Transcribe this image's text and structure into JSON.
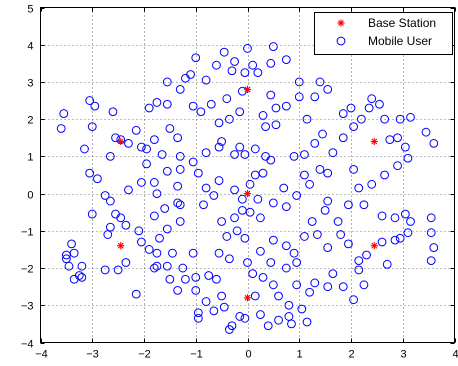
{
  "chart_data": {
    "type": "scatter",
    "title": "",
    "xlabel": "",
    "ylabel": "",
    "xlim": [
      -4,
      4
    ],
    "ylim": [
      -4,
      5
    ],
    "xticks": [
      -4,
      -3,
      -2,
      -1,
      0,
      1,
      2,
      3,
      4
    ],
    "yticks": [
      -4,
      -3,
      -2,
      -1,
      0,
      1,
      2,
      3,
      4,
      5
    ],
    "xtick_labels": [
      "−4",
      "−3",
      "−2",
      "−1",
      "0",
      "1",
      "2",
      "3",
      "4"
    ],
    "ytick_labels": [
      "−4",
      "−3",
      "−2",
      "−1",
      "0",
      "1",
      "2",
      "3",
      "4",
      "5"
    ],
    "grid": true,
    "legend_position": "top-right",
    "series": [
      {
        "name": "Base Station",
        "marker": "star",
        "color": "#ff0000",
        "points": [
          [
            0,
            0
          ],
          [
            0,
            2.8
          ],
          [
            0,
            -2.8
          ],
          [
            -2.45,
            1.4
          ],
          [
            2.45,
            1.4
          ],
          [
            -2.45,
            -1.4
          ],
          [
            2.45,
            -1.4
          ]
        ]
      },
      {
        "name": "Mobile User",
        "marker": "circle",
        "color": "#0000ff",
        "points": [
          [
            -3.55,
            2.15
          ],
          [
            -3.6,
            1.75
          ],
          [
            -3.05,
            2.5
          ],
          [
            -2.95,
            2.35
          ],
          [
            -3.0,
            1.8
          ],
          [
            -3.15,
            1.2
          ],
          [
            -3.05,
            0.55
          ],
          [
            -2.9,
            0.4
          ],
          [
            -3.0,
            -0.55
          ],
          [
            -2.65,
            -0.2
          ],
          [
            -2.6,
            2.2
          ],
          [
            -2.55,
            1.5
          ],
          [
            -2.45,
            1.45
          ],
          [
            -2.3,
            1.35
          ],
          [
            -2.15,
            1.7
          ],
          [
            -2.05,
            1.25
          ],
          [
            -1.95,
            0.8
          ],
          [
            -2.05,
            0.3
          ],
          [
            -2.3,
            0.1
          ],
          [
            -2.55,
            -0.55
          ],
          [
            -2.45,
            -0.65
          ],
          [
            -2.35,
            -0.85
          ],
          [
            -2.65,
            -0.9
          ],
          [
            -2.1,
            -1.0
          ],
          [
            -2.05,
            -1.3
          ],
          [
            -1.9,
            -1.5
          ],
          [
            -2.5,
            -2.05
          ],
          [
            -2.75,
            -2.05
          ],
          [
            -3.25,
            -2.2
          ],
          [
            -3.45,
            -1.95
          ],
          [
            -3.5,
            -1.75
          ],
          [
            -3.35,
            -1.6
          ],
          [
            -3.2,
            -1.95
          ],
          [
            -3.2,
            -2.25
          ],
          [
            -3.35,
            -2.3
          ],
          [
            -2.15,
            -2.7
          ],
          [
            -1.8,
            -2.0
          ],
          [
            -1.75,
            -1.6
          ],
          [
            -1.7,
            -1.2
          ],
          [
            -1.55,
            -0.95
          ],
          [
            -1.8,
            -0.6
          ],
          [
            -1.6,
            -0.4
          ],
          [
            -1.75,
            0.0
          ],
          [
            -1.8,
            0.3
          ],
          [
            -1.55,
            0.6
          ],
          [
            -1.65,
            1.05
          ],
          [
            -1.8,
            1.45
          ],
          [
            -1.9,
            2.3
          ],
          [
            -1.75,
            2.45
          ],
          [
            -1.55,
            2.4
          ],
          [
            -1.5,
            1.75
          ],
          [
            -1.35,
            1.5
          ],
          [
            -1.3,
            1.0
          ],
          [
            -1.3,
            0.65
          ],
          [
            -1.35,
            0.2
          ],
          [
            -1.3,
            -0.3
          ],
          [
            -1.3,
            -0.75
          ],
          [
            -1.45,
            -1.6
          ],
          [
            -1.55,
            -1.95
          ],
          [
            -1.75,
            -1.95
          ],
          [
            -1.25,
            -2.0
          ],
          [
            -1.5,
            -2.3
          ],
          [
            -1.05,
            -1.6
          ],
          [
            -1.0,
            -2.25
          ],
          [
            -1.0,
            -2.6
          ],
          [
            -0.95,
            -3.2
          ],
          [
            -0.95,
            -3.35
          ],
          [
            -0.8,
            -2.9
          ],
          [
            -0.65,
            -3.15
          ],
          [
            -0.45,
            -3.05
          ],
          [
            -0.3,
            -3.55
          ],
          [
            -0.15,
            -3.3
          ],
          [
            -0.05,
            -3.35
          ],
          [
            -0.5,
            -2.75
          ],
          [
            -0.55,
            -1.6
          ],
          [
            -0.4,
            -1.15
          ],
          [
            -0.5,
            -0.75
          ],
          [
            -0.25,
            -0.65
          ],
          [
            -0.1,
            -0.45
          ],
          [
            0.05,
            -0.5
          ],
          [
            -0.1,
            -0.15
          ],
          [
            -0.25,
            0.1
          ],
          [
            -0.55,
            0.35
          ],
          [
            -0.8,
            0.15
          ],
          [
            -0.85,
            -0.3
          ],
          [
            -0.95,
            0.55
          ],
          [
            -1.05,
            0.85
          ],
          [
            -0.8,
            1.1
          ],
          [
            -0.55,
            1.25
          ],
          [
            -0.5,
            1.4
          ],
          [
            -0.25,
            1.05
          ],
          [
            -0.15,
            1.25
          ],
          [
            -0.05,
            1.05
          ],
          [
            0.15,
            1.2
          ],
          [
            0.35,
            1.0
          ],
          [
            0.45,
            0.9
          ],
          [
            0.3,
            0.55
          ],
          [
            0.15,
            0.5
          ],
          [
            0.05,
            0.25
          ],
          [
            0.2,
            -0.15
          ],
          [
            0.5,
            -0.25
          ],
          [
            0.75,
            -0.35
          ],
          [
            0.7,
            0.15
          ],
          [
            0.95,
            -0.05
          ],
          [
            1.1,
            0.5
          ],
          [
            1.2,
            0.25
          ],
          [
            1.4,
            0.65
          ],
          [
            1.55,
            0.55
          ],
          [
            1.65,
            1.1
          ],
          [
            1.3,
            1.35
          ],
          [
            1.1,
            1.05
          ],
          [
            0.9,
            1.0
          ],
          [
            0.55,
            1.85
          ],
          [
            0.35,
            1.8
          ],
          [
            0.55,
            2.3
          ],
          [
            0.45,
            2.65
          ],
          [
            0.75,
            2.35
          ],
          [
            1.0,
            2.6
          ],
          [
            1.15,
            2.0
          ],
          [
            1.3,
            2.6
          ],
          [
            1.4,
            3.0
          ],
          [
            1.55,
            2.8
          ],
          [
            1.45,
            1.6
          ],
          [
            1.85,
            1.5
          ],
          [
            1.85,
            2.15
          ],
          [
            2.0,
            2.3
          ],
          [
            2.05,
            1.8
          ],
          [
            2.2,
            2.0
          ],
          [
            2.35,
            2.3
          ],
          [
            2.4,
            2.55
          ],
          [
            2.55,
            2.4
          ],
          [
            2.65,
            2.0
          ],
          [
            2.75,
            1.45
          ],
          [
            2.95,
            2.0
          ],
          [
            2.9,
            1.5
          ],
          [
            3.05,
            1.25
          ],
          [
            3.1,
            0.95
          ],
          [
            2.9,
            0.75
          ],
          [
            2.65,
            0.5
          ],
          [
            2.4,
            0.25
          ],
          [
            2.15,
            0.15
          ],
          [
            2.05,
            0.65
          ],
          [
            1.95,
            -0.3
          ],
          [
            2.25,
            -0.3
          ],
          [
            2.6,
            -0.6
          ],
          [
            2.85,
            -0.65
          ],
          [
            3.05,
            -0.55
          ],
          [
            3.15,
            -0.75
          ],
          [
            3.1,
            -1.05
          ],
          [
            2.95,
            -1.2
          ],
          [
            2.6,
            -1.3
          ],
          [
            2.3,
            -1.65
          ],
          [
            2.15,
            -1.8
          ],
          [
            2.15,
            -2.05
          ],
          [
            2.25,
            -2.45
          ],
          [
            2.05,
            -2.85
          ],
          [
            1.85,
            -2.5
          ],
          [
            1.65,
            -2.15
          ],
          [
            1.55,
            -2.5
          ],
          [
            1.3,
            -2.4
          ],
          [
            1.2,
            -2.65
          ],
          [
            0.95,
            -2.45
          ],
          [
            0.75,
            -2.0
          ],
          [
            0.5,
            -2.45
          ],
          [
            0.6,
            -2.75
          ],
          [
            0.8,
            -3.0
          ],
          [
            0.8,
            -3.3
          ],
          [
            1.05,
            -3.1
          ],
          [
            1.15,
            -3.45
          ],
          [
            0.85,
            -3.5
          ],
          [
            0.6,
            -3.4
          ],
          [
            0.4,
            -3.55
          ],
          [
            0.25,
            -3.25
          ],
          [
            0.15,
            -2.75
          ],
          [
            0.3,
            -2.25
          ],
          [
            0.0,
            -1.85
          ],
          [
            0.1,
            -2.15
          ],
          [
            0.25,
            -1.55
          ],
          [
            0.5,
            -1.25
          ],
          [
            0.75,
            -1.4
          ],
          [
            0.95,
            -1.85
          ],
          [
            1.1,
            -1.15
          ],
          [
            1.35,
            -1.1
          ],
          [
            1.25,
            -0.75
          ],
          [
            1.5,
            -0.45
          ],
          [
            1.55,
            -0.2
          ],
          [
            1.8,
            -1.1
          ],
          [
            1.95,
            -1.35
          ],
          [
            -0.05,
            -1.2
          ],
          [
            0.25,
            -0.65
          ],
          [
            -0.2,
            -1.0
          ],
          [
            -0.35,
            -1.75
          ],
          [
            -0.6,
            -2.3
          ],
          [
            -0.75,
            -2.2
          ],
          [
            0.45,
            -1.85
          ],
          [
            0.9,
            -1.6
          ],
          [
            -1.2,
            -2.3
          ],
          [
            -1.35,
            -2.6
          ],
          [
            -2.35,
            -1.85
          ],
          [
            -2.7,
            -1.1
          ],
          [
            -0.15,
            2.2
          ],
          [
            -0.35,
            2.0
          ],
          [
            -0.55,
            1.9
          ],
          [
            -0.7,
            2.4
          ],
          [
            -0.9,
            2.2
          ],
          [
            -1.05,
            2.35
          ],
          [
            -1.1,
            3.2
          ],
          [
            -0.8,
            3.05
          ],
          [
            -0.6,
            3.45
          ],
          [
            -0.45,
            3.8
          ],
          [
            -0.25,
            3.55
          ],
          [
            -0.05,
            3.25
          ],
          [
            0.0,
            3.9
          ],
          [
            0.1,
            3.45
          ],
          [
            0.2,
            3.25
          ],
          [
            0.45,
            3.5
          ],
          [
            0.5,
            3.95
          ],
          [
            0.75,
            3.6
          ],
          [
            1.0,
            3.0
          ],
          [
            -1.2,
            3.1
          ],
          [
            -1.0,
            3.65
          ],
          [
            -0.4,
            2.55
          ],
          [
            -0.1,
            2.75
          ],
          [
            0.3,
            2.1
          ],
          [
            3.45,
            1.65
          ],
          [
            3.15,
            2.05
          ],
          [
            3.6,
            1.35
          ],
          [
            3.55,
            -0.65
          ],
          [
            3.55,
            -1.05
          ],
          [
            3.6,
            -1.45
          ],
          [
            3.55,
            -1.8
          ],
          [
            2.85,
            -1.25
          ],
          [
            2.7,
            -1.9
          ],
          [
            -3.5,
            -1.65
          ],
          [
            -2.75,
            -0.05
          ],
          [
            -3.4,
            -1.35
          ],
          [
            1.75,
            -0.75
          ],
          [
            1.55,
            -1.45
          ],
          [
            -1.35,
            -0.25
          ],
          [
            -0.65,
            -0.05
          ],
          [
            -1.95,
            1.2
          ],
          [
            -2.65,
            1.0
          ],
          [
            -1.55,
            3.0
          ],
          [
            -1.3,
            2.8
          ],
          [
            -0.3,
            3.3
          ],
          [
            -0.35,
            -3.65
          ]
        ]
      }
    ]
  }
}
